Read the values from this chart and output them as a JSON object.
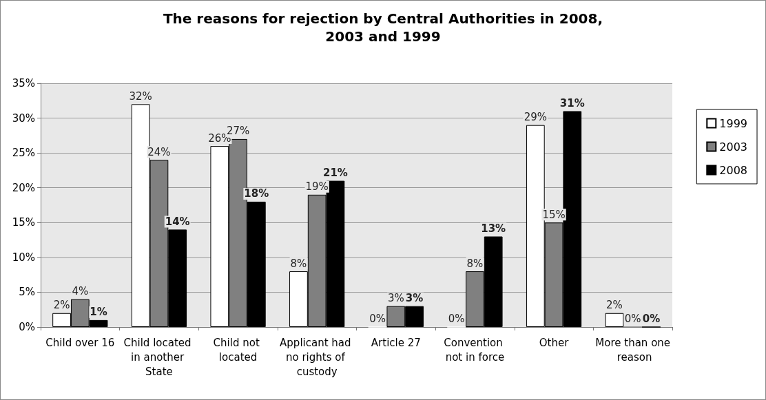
{
  "chart_data": {
    "type": "bar",
    "title": "The reasons for rejection by Central Authorities in 2008,\n2003 and 1999",
    "categories": [
      "Child over 16",
      "Child located in another State",
      "Child not located",
      "Applicant had no rights of custody",
      "Article 27",
      "Convention not in force",
      "Other",
      "More than one reason"
    ],
    "series": [
      {
        "name": "1999",
        "color": "#ffffff",
        "values": [
          2,
          32,
          26,
          8,
          0,
          0,
          29,
          2
        ],
        "value_labels": [
          "2%",
          "32%",
          "26%",
          "8%",
          "0%",
          "0%",
          "29%",
          "2%"
        ]
      },
      {
        "name": "2003",
        "color": "#808080",
        "values": [
          4,
          24,
          27,
          19,
          3,
          8,
          15,
          0
        ],
        "value_labels": [
          "4%",
          "24%",
          "27%",
          "19%",
          "3%",
          "8%",
          "15%",
          "0%"
        ]
      },
      {
        "name": "2008",
        "color": "#000000",
        "values": [
          1,
          14,
          18,
          21,
          3,
          13,
          31,
          0
        ],
        "value_labels": [
          "1%",
          "14%",
          "18%",
          "21%",
          "3%",
          "13%",
          "31%",
          "0%"
        ]
      }
    ],
    "ylim": [
      0,
      35
    ],
    "yticks": [
      {
        "value": 0,
        "label": "0%"
      },
      {
        "value": 5,
        "label": "5%"
      },
      {
        "value": 10,
        "label": "10%"
      },
      {
        "value": 15,
        "label": "15%"
      },
      {
        "value": 20,
        "label": "20%"
      },
      {
        "value": 25,
        "label": "25%"
      },
      {
        "value": 30,
        "label": "30%"
      },
      {
        "value": 35,
        "label": "35%"
      }
    ],
    "grid": "y",
    "legend": "right"
  }
}
